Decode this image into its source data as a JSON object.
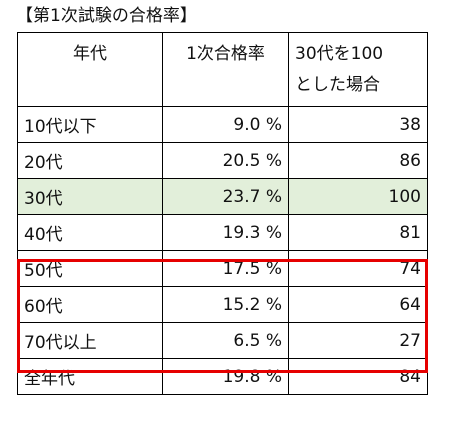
{
  "caption": "【第1次試験の合格率】",
  "header": {
    "col1": "年代",
    "col2": "1次合格率",
    "col3_line1": "30代を100",
    "col3_line2": "とした場合"
  },
  "rows": [
    {
      "age": "10代以下",
      "rate": "9.0 %",
      "index": "38"
    },
    {
      "age": "20代",
      "rate": "20.5 %",
      "index": "86"
    },
    {
      "age": "30代",
      "rate": "23.7 %",
      "index": "100"
    },
    {
      "age": "40代",
      "rate": "19.3 %",
      "index": "81"
    },
    {
      "age": "50代",
      "rate": "17.5 %",
      "index": "74"
    },
    {
      "age": "60代",
      "rate": "15.2 %",
      "index": "64"
    },
    {
      "age": "70代以上",
      "rate": "6.5 %",
      "index": "27"
    },
    {
      "age": "全年代",
      "rate": "19.8 %",
      "index": "84"
    }
  ],
  "colors": {
    "highlight_row": "#e2efda",
    "emphasis_box": "#e60000"
  }
}
